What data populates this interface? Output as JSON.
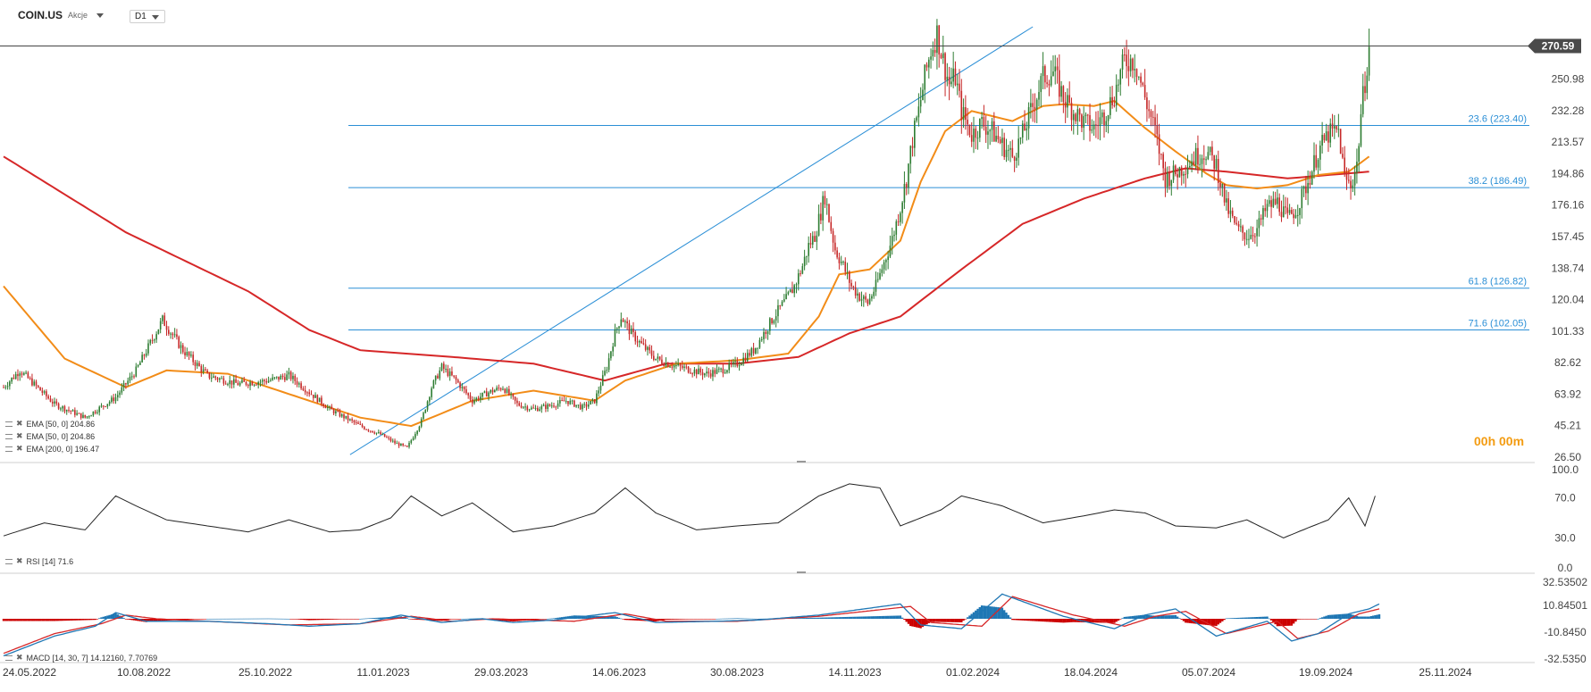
{
  "header": {
    "symbol": "COIN.US",
    "asset_class": "Akcje",
    "timeframe": "D1"
  },
  "colors": {
    "ema50": "#f28c18",
    "ema200": "#d62728",
    "fib": "#2b8fd6",
    "price_line": "#444444",
    "macd_line": "#1f77b4",
    "signal_line": "#d62728",
    "hist_pos": "#1f77b4",
    "hist_neg": "#cc0000"
  },
  "timer": "00h 00m",
  "indicators": {
    "ema_legend": [
      "EMA [50, 0] 204.86",
      "EMA [50, 0] 204.86",
      "EMA [200, 0] 196.47"
    ],
    "rsi_legend": "RSI [14] 71.6",
    "macd_legend": "MACD [14, 30, 7] 14.12160, 7.70769"
  },
  "chart_data": [
    {
      "type": "candlestick",
      "symbol": "COIN.US",
      "current_price": 270.59,
      "current_price_label": "270.59",
      "y_ticks": [
        26.5,
        45.21,
        63.92,
        82.62,
        101.33,
        120.04,
        138.74,
        157.45,
        176.16,
        194.86,
        213.57,
        232.28,
        250.98
      ],
      "y_tick_labels": [
        "26.50",
        "45.21",
        "63.92",
        "82.62",
        "101.33",
        "120.04",
        "138.74",
        "157.45",
        "176.16",
        "194.86",
        "213.57",
        "232.28",
        "250.98"
      ],
      "ylim": [
        26.5,
        282
      ],
      "x_tick_labels": [
        "24.05.2022",
        "10.08.2022",
        "25.10.2022",
        "11.01.2023",
        "29.03.2023",
        "14.06.2023",
        "30.08.2023",
        "14.11.2023",
        "01.02.2024",
        "18.04.2024",
        "05.07.2024",
        "19.09.2024",
        "25.11.2024"
      ],
      "price_path": [
        [
          0,
          68
        ],
        [
          8,
          78
        ],
        [
          25,
          58
        ],
        [
          40,
          50
        ],
        [
          55,
          62
        ],
        [
          65,
          78
        ],
        [
          78,
          108
        ],
        [
          88,
          90
        ],
        [
          100,
          75
        ],
        [
          115,
          70
        ],
        [
          130,
          72
        ],
        [
          140,
          75
        ],
        [
          160,
          55
        ],
        [
          175,
          45
        ],
        [
          185,
          40
        ],
        [
          192,
          35
        ],
        [
          198,
          32
        ],
        [
          205,
          48
        ],
        [
          210,
          68
        ],
        [
          215,
          80
        ],
        [
          222,
          72
        ],
        [
          230,
          60
        ],
        [
          238,
          65
        ],
        [
          245,
          68
        ],
        [
          252,
          58
        ],
        [
          260,
          55
        ],
        [
          268,
          57
        ],
        [
          276,
          60
        ],
        [
          284,
          56
        ],
        [
          290,
          60
        ],
        [
          296,
          80
        ],
        [
          300,
          100
        ],
        [
          303,
          110
        ],
        [
          308,
          100
        ],
        [
          314,
          92
        ],
        [
          320,
          85
        ],
        [
          326,
          82
        ],
        [
          332,
          80
        ],
        [
          338,
          78
        ],
        [
          345,
          76
        ],
        [
          352,
          78
        ],
        [
          360,
          82
        ],
        [
          368,
          90
        ],
        [
          373,
          100
        ],
        [
          378,
          110
        ],
        [
          384,
          120
        ],
        [
          388,
          128
        ],
        [
          392,
          140
        ],
        [
          395,
          152
        ],
        [
          398,
          158
        ],
        [
          401,
          172
        ],
        [
          403,
          182
        ],
        [
          405,
          168
        ],
        [
          408,
          150
        ],
        [
          412,
          140
        ],
        [
          416,
          128
        ],
        [
          420,
          122
        ],
        [
          424,
          118
        ],
        [
          428,
          128
        ],
        [
          432,
          142
        ],
        [
          436,
          156
        ],
        [
          440,
          175
        ],
        [
          443,
          192
        ],
        [
          446,
          215
        ],
        [
          449,
          232
        ],
        [
          452,
          252
        ],
        [
          455,
          268
        ],
        [
          458,
          278
        ],
        [
          461,
          262
        ],
        [
          464,
          248
        ],
        [
          467,
          252
        ],
        [
          470,
          232
        ],
        [
          475,
          218
        ],
        [
          480,
          225
        ],
        [
          485,
          220
        ],
        [
          490,
          212
        ],
        [
          495,
          205
        ],
        [
          500,
          218
        ],
        [
          505,
          235
        ],
        [
          510,
          252
        ],
        [
          515,
          255
        ],
        [
          520,
          240
        ],
        [
          525,
          232
        ],
        [
          530,
          225
        ],
        [
          535,
          222
        ],
        [
          540,
          230
        ],
        [
          545,
          242
        ],
        [
          550,
          262
        ],
        [
          555,
          262
        ],
        [
          560,
          240
        ],
        [
          565,
          220
        ],
        [
          570,
          192
        ],
        [
          575,
          195
        ],
        [
          580,
          200
        ],
        [
          585,
          205
        ],
        [
          590,
          208
        ],
        [
          595,
          200
        ],
        [
          600,
          175
        ],
        [
          605,
          162
        ],
        [
          610,
          158
        ],
        [
          615,
          162
        ],
        [
          620,
          175
        ],
        [
          625,
          178
        ],
        [
          630,
          168
        ],
        [
          635,
          175
        ],
        [
          640,
          190
        ],
        [
          645,
          208
        ],
        [
          650,
          218
        ],
        [
          655,
          220
        ],
        [
          658,
          192
        ],
        [
          661,
          188
        ],
        [
          664,
          200
        ],
        [
          666,
          230
        ],
        [
          668,
          250
        ],
        [
          670,
          270
        ]
      ],
      "ema50_path": [
        [
          0,
          128
        ],
        [
          30,
          85
        ],
        [
          60,
          68
        ],
        [
          80,
          78
        ],
        [
          110,
          76
        ],
        [
          150,
          60
        ],
        [
          175,
          50
        ],
        [
          200,
          45
        ],
        [
          230,
          60
        ],
        [
          260,
          66
        ],
        [
          290,
          60
        ],
        [
          305,
          72
        ],
        [
          330,
          82
        ],
        [
          360,
          84
        ],
        [
          385,
          88
        ],
        [
          400,
          110
        ],
        [
          410,
          135
        ],
        [
          425,
          138
        ],
        [
          440,
          155
        ],
        [
          450,
          190
        ],
        [
          462,
          220
        ],
        [
          475,
          232
        ],
        [
          495,
          226
        ],
        [
          510,
          235
        ],
        [
          520,
          236
        ],
        [
          535,
          235
        ],
        [
          545,
          238
        ],
        [
          560,
          222
        ],
        [
          575,
          208
        ],
        [
          590,
          195
        ],
        [
          600,
          188
        ],
        [
          615,
          186
        ],
        [
          630,
          188
        ],
        [
          645,
          194
        ],
        [
          660,
          196
        ],
        [
          670,
          205
        ]
      ],
      "ema200_path": [
        [
          0,
          205
        ],
        [
          60,
          160
        ],
        [
          120,
          125
        ],
        [
          150,
          102
        ],
        [
          175,
          90
        ],
        [
          220,
          86
        ],
        [
          260,
          82
        ],
        [
          295,
          72
        ],
        [
          325,
          82
        ],
        [
          360,
          82
        ],
        [
          390,
          86
        ],
        [
          415,
          100
        ],
        [
          440,
          110
        ],
        [
          470,
          138
        ],
        [
          500,
          165
        ],
        [
          530,
          180
        ],
        [
          560,
          192
        ],
        [
          580,
          198
        ],
        [
          600,
          196
        ],
        [
          630,
          192
        ],
        [
          670,
          196
        ]
      ],
      "trendline": [
        [
          170,
          28
        ],
        [
          505,
          282
        ]
      ],
      "fib_levels": [
        {
          "label": "23.6 (223.40)",
          "value": 223.4
        },
        {
          "label": "38.2 (186.49)",
          "value": 186.49
        },
        {
          "label": "61.8 (126.82)",
          "value": 126.82
        },
        {
          "label": "71.6 (102.05)",
          "value": 102.05
        }
      ]
    },
    {
      "type": "line",
      "name": "RSI [14]",
      "value": 71.6,
      "y_tick_labels": [
        "100.0",
        "70.0",
        "30.0",
        "0.0"
      ],
      "ylim": [
        0,
        100
      ],
      "rsi_path": [
        [
          0,
          32
        ],
        [
          20,
          45
        ],
        [
          40,
          38
        ],
        [
          55,
          72
        ],
        [
          65,
          62
        ],
        [
          80,
          48
        ],
        [
          100,
          42
        ],
        [
          120,
          36
        ],
        [
          140,
          48
        ],
        [
          160,
          36
        ],
        [
          175,
          38
        ],
        [
          190,
          50
        ],
        [
          200,
          72
        ],
        [
          215,
          52
        ],
        [
          230,
          65
        ],
        [
          250,
          36
        ],
        [
          270,
          42
        ],
        [
          290,
          55
        ],
        [
          305,
          80
        ],
        [
          320,
          55
        ],
        [
          340,
          38
        ],
        [
          360,
          42
        ],
        [
          380,
          45
        ],
        [
          400,
          72
        ],
        [
          415,
          84
        ],
        [
          430,
          80
        ],
        [
          440,
          42
        ],
        [
          460,
          58
        ],
        [
          470,
          72
        ],
        [
          490,
          62
        ],
        [
          510,
          45
        ],
        [
          530,
          52
        ],
        [
          545,
          58
        ],
        [
          560,
          55
        ],
        [
          575,
          42
        ],
        [
          595,
          40
        ],
        [
          610,
          48
        ],
        [
          628,
          30
        ],
        [
          640,
          40
        ],
        [
          650,
          48
        ],
        [
          660,
          70
        ],
        [
          668,
          42
        ],
        [
          673,
          72
        ]
      ]
    },
    {
      "type": "bar+line",
      "name": "MACD [14, 30, 7]",
      "macd": 14.1216,
      "signal": 7.70769,
      "y_tick_labels": [
        "32.53502",
        "10.84501",
        "-10.8450",
        "-32.5350"
      ],
      "ylim": [
        -32.535,
        32.535
      ],
      "macd_path": [
        [
          0,
          -30
        ],
        [
          25,
          -14
        ],
        [
          45,
          -6
        ],
        [
          55,
          5
        ],
        [
          70,
          -2
        ],
        [
          100,
          -2
        ],
        [
          130,
          -4
        ],
        [
          150,
          -6
        ],
        [
          175,
          -4
        ],
        [
          195,
          3
        ],
        [
          215,
          -3
        ],
        [
          235,
          0
        ],
        [
          250,
          -3
        ],
        [
          270,
          -1
        ],
        [
          300,
          5
        ],
        [
          320,
          -3
        ],
        [
          350,
          -2
        ],
        [
          370,
          -1
        ],
        [
          400,
          3
        ],
        [
          440,
          12
        ],
        [
          450,
          -5
        ],
        [
          470,
          -8
        ],
        [
          490,
          20
        ],
        [
          520,
          2
        ],
        [
          545,
          -8
        ],
        [
          560,
          3
        ],
        [
          575,
          8
        ],
        [
          595,
          -14
        ],
        [
          620,
          -2
        ],
        [
          632,
          -18
        ],
        [
          645,
          -12
        ],
        [
          660,
          4
        ],
        [
          670,
          8
        ],
        [
          675,
          12
        ]
      ],
      "signal_path": [
        [
          0,
          -28
        ],
        [
          25,
          -12
        ],
        [
          48,
          -4
        ],
        [
          60,
          3
        ],
        [
          75,
          0
        ],
        [
          100,
          -2
        ],
        [
          140,
          -5
        ],
        [
          175,
          -4
        ],
        [
          200,
          2
        ],
        [
          220,
          -2
        ],
        [
          240,
          0
        ],
        [
          280,
          -2
        ],
        [
          305,
          4
        ],
        [
          325,
          -2
        ],
        [
          360,
          -2
        ],
        [
          400,
          2
        ],
        [
          445,
          10
        ],
        [
          455,
          -3
        ],
        [
          480,
          -6
        ],
        [
          495,
          18
        ],
        [
          525,
          3
        ],
        [
          550,
          -6
        ],
        [
          565,
          2
        ],
        [
          580,
          6
        ],
        [
          600,
          -12
        ],
        [
          625,
          -2
        ],
        [
          635,
          -16
        ],
        [
          650,
          -10
        ],
        [
          665,
          4
        ],
        [
          675,
          8
        ]
      ]
    }
  ]
}
